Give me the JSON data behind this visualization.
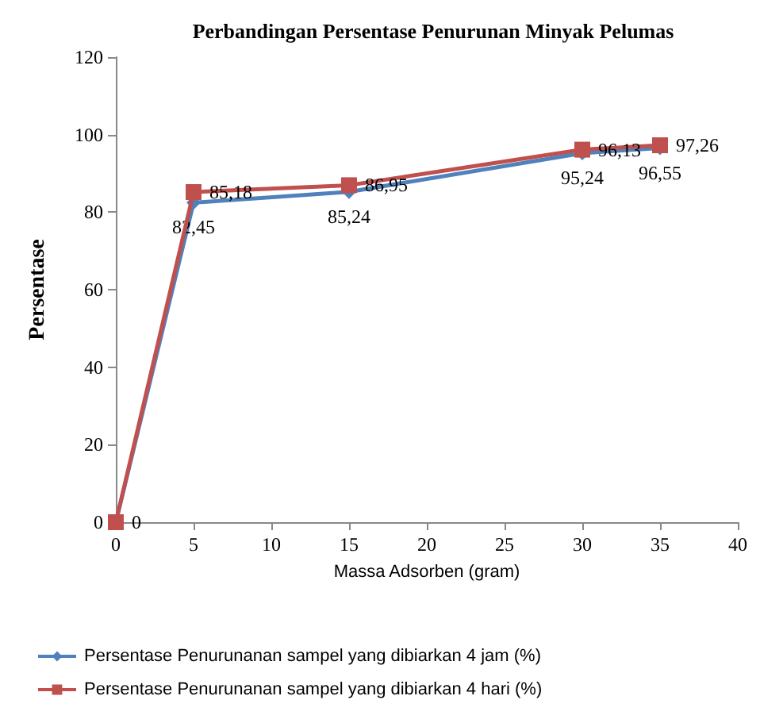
{
  "chart_data": {
    "type": "line",
    "title": "Perbandingan Persentase Penurunan Minyak Pelumas",
    "xlabel": "Massa Adsorben (gram)",
    "ylabel": "Persentase",
    "x": [
      0,
      5,
      15,
      30,
      35
    ],
    "series": [
      {
        "name": "Persentase Penurunanan sampel yang dibiarkan 4 jam (%)",
        "color": "#4f81bd",
        "marker": "diamond",
        "values": [
          0,
          82.45,
          85.24,
          95.24,
          96.55
        ],
        "value_labels": [
          null,
          "82,45",
          "85,24",
          "95,24",
          "96,55"
        ]
      },
      {
        "name": "Persentase Penurunanan sampel yang dibiarkan 4 hari (%)",
        "color": "#c0504d",
        "marker": "square",
        "values": [
          0,
          85.18,
          86.95,
          96.13,
          97.26
        ],
        "value_labels": [
          "0",
          "85,18",
          "86,95",
          "96,13",
          "97,26"
        ]
      }
    ],
    "xlim": [
      0,
      40
    ],
    "xticks": [
      0,
      5,
      10,
      15,
      20,
      25,
      30,
      35,
      40
    ],
    "ylim": [
      0,
      120
    ],
    "yticks": [
      0,
      20,
      40,
      60,
      80,
      100,
      120
    ],
    "grid": false,
    "legend": "bottom"
  }
}
